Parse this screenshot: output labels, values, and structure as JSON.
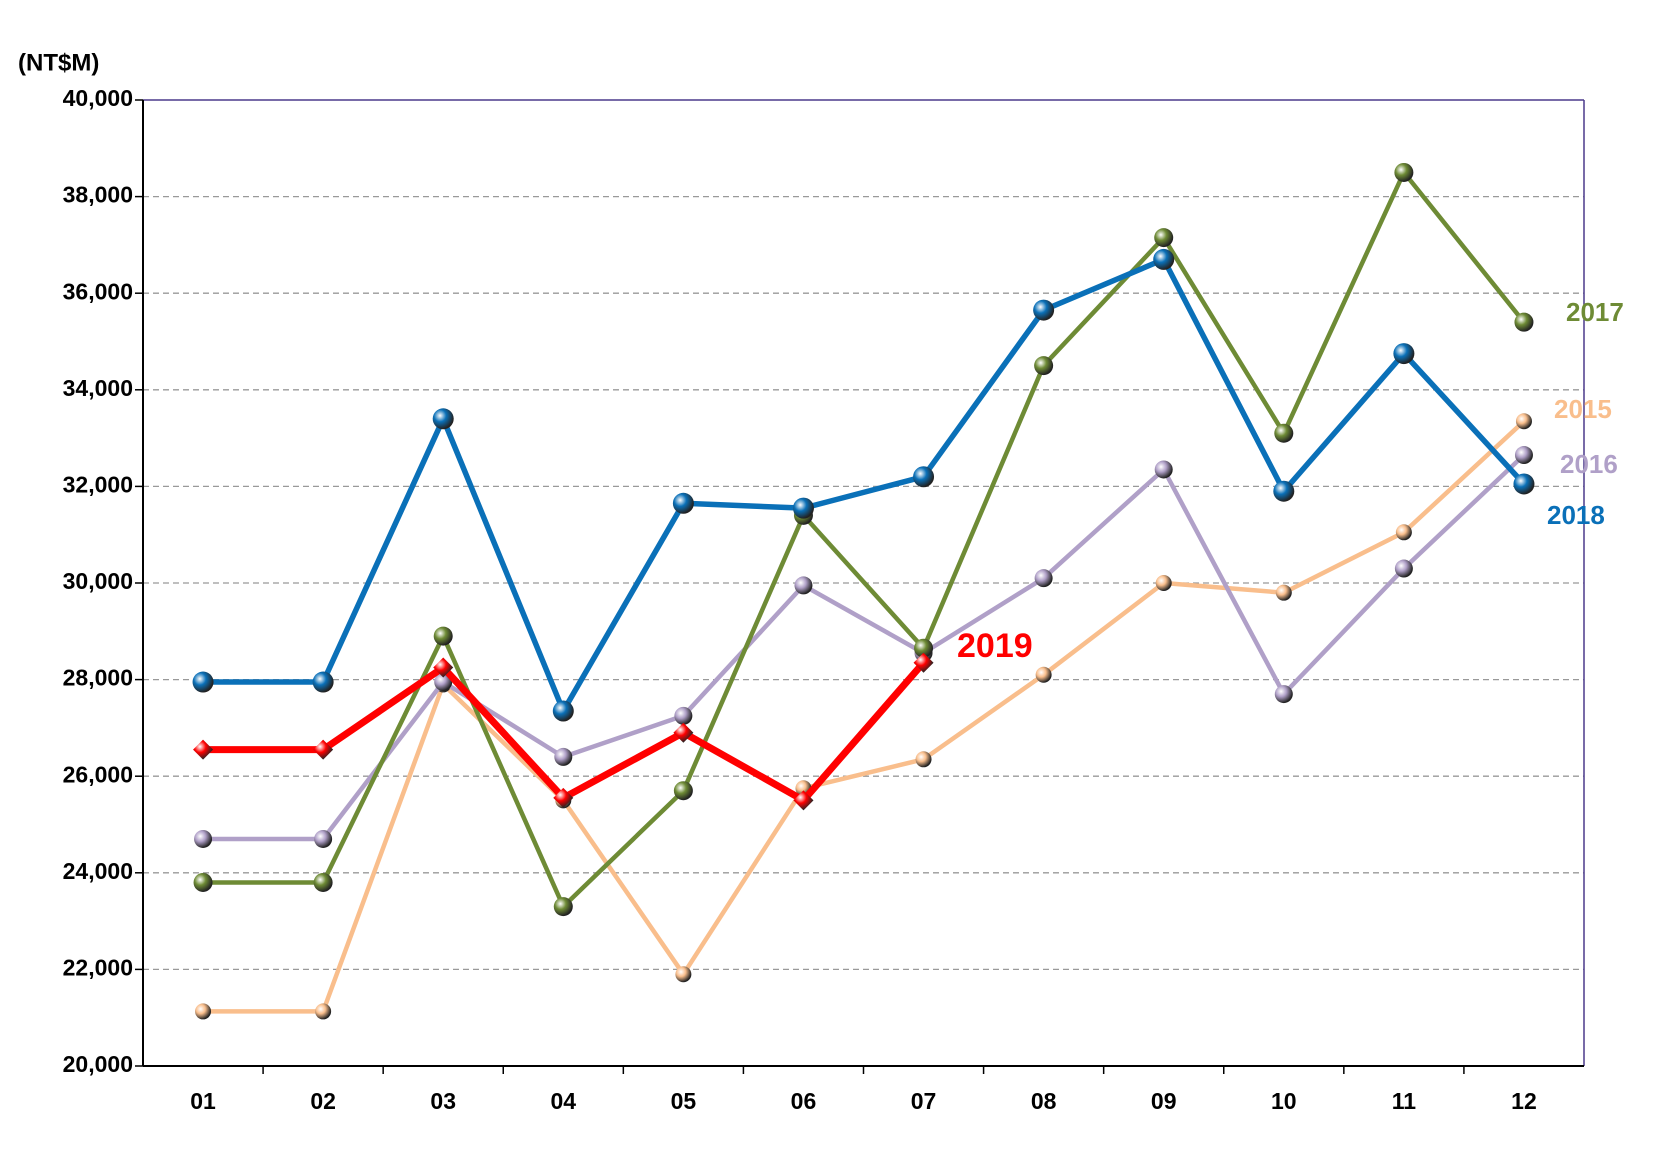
{
  "chart_data": {
    "type": "line",
    "y_label": "(NT$M)",
    "categories": [
      "01",
      "02",
      "03",
      "04",
      "05",
      "06",
      "07",
      "08",
      "09",
      "10",
      "11",
      "12"
    ],
    "ylim": [
      20000,
      40000
    ],
    "yticks": [
      {
        "value": 20000,
        "label": "20,000"
      },
      {
        "value": 22000,
        "label": "22,000"
      },
      {
        "value": 24000,
        "label": "24,000"
      },
      {
        "value": 26000,
        "label": "26,000"
      },
      {
        "value": 28000,
        "label": "28,000"
      },
      {
        "value": 30000,
        "label": "30,000"
      },
      {
        "value": 32000,
        "label": "32,000"
      },
      {
        "value": 34000,
        "label": "34,000"
      },
      {
        "value": 36000,
        "label": "36,000"
      },
      {
        "value": 38000,
        "label": "38,000"
      },
      {
        "value": 40000,
        "label": "40,000"
      }
    ],
    "grid": true,
    "series": [
      {
        "name": "2015",
        "color": "#f9be8c",
        "values": [
          21130,
          21130,
          27900,
          25500,
          21900,
          25750,
          26350,
          28100,
          30000,
          29800,
          31050,
          33350
        ]
      },
      {
        "name": "2016",
        "color": "#b0a0c8",
        "values": [
          24700,
          24700,
          27950,
          26400,
          27250,
          29950,
          28550,
          30100,
          32350,
          27700,
          30300,
          32650
        ]
      },
      {
        "name": "2017",
        "color": "#6e8b35",
        "values": [
          23800,
          23800,
          28900,
          23300,
          25700,
          31400,
          28650,
          34500,
          37150,
          33100,
          38500,
          35400
        ]
      },
      {
        "name": "2018",
        "color": "#0a70b8",
        "values": [
          27950,
          27950,
          33400,
          27350,
          31650,
          31550,
          32200,
          35650,
          36700,
          31900,
          34750,
          32050
        ]
      },
      {
        "name": "2019",
        "color": "#ff0000",
        "values": [
          26550,
          26550,
          28250,
          25550,
          26900,
          25500,
          28350,
          null,
          null,
          null,
          null,
          null
        ]
      }
    ]
  }
}
